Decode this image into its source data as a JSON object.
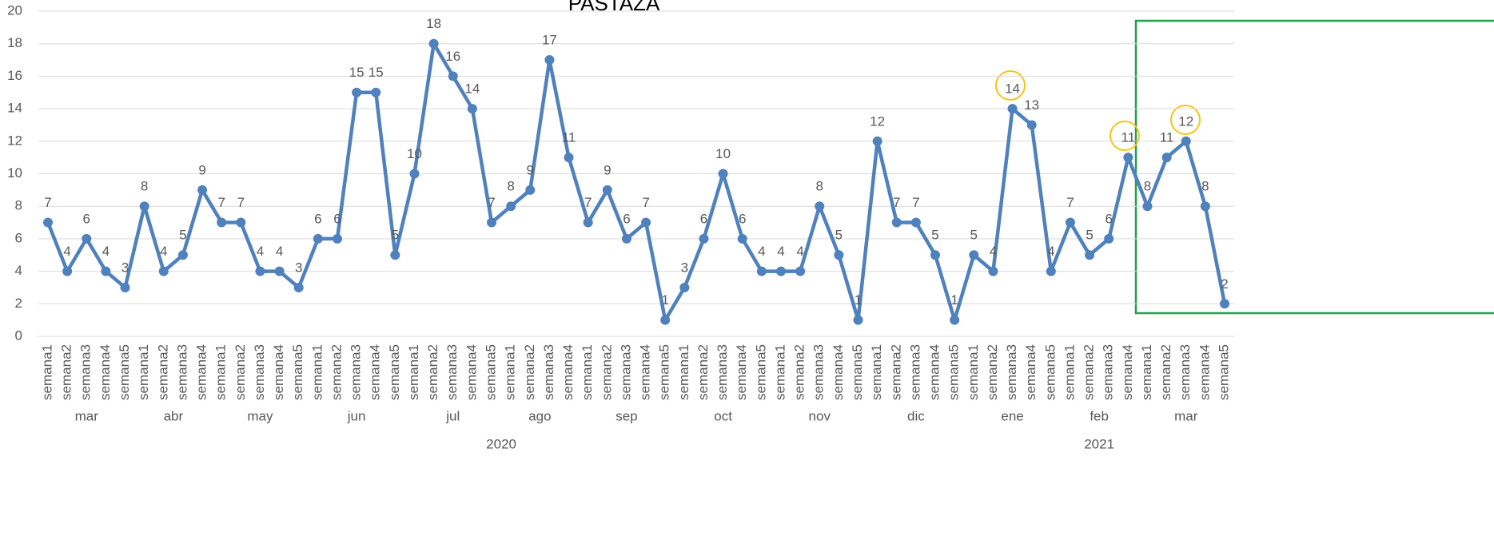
{
  "chart_data": {
    "type": "line",
    "title": "PASTAZA",
    "groups": [
      {
        "year": "2020",
        "months": [
          {
            "month": "mar",
            "weeks": [
              "semana1",
              "semana2",
              "semana3",
              "semana4",
              "semana5"
            ]
          },
          {
            "month": "abr",
            "weeks": [
              "semana1",
              "semana2",
              "semana3",
              "semana4"
            ]
          },
          {
            "month": "may",
            "weeks": [
              "semana1",
              "semana2",
              "semana3",
              "semana4",
              "semana5"
            ]
          },
          {
            "month": "jun",
            "weeks": [
              "semana1",
              "semana2",
              "semana3",
              "semana4",
              "semana5"
            ]
          },
          {
            "month": "jul",
            "weeks": [
              "semana1",
              "semana2",
              "semana3",
              "semana4",
              "semana5"
            ]
          },
          {
            "month": "ago",
            "weeks": [
              "semana1",
              "semana2",
              "semana3",
              "semana4"
            ]
          },
          {
            "month": "sep",
            "weeks": [
              "semana1",
              "semana2",
              "semana3",
              "semana4",
              "semana5"
            ]
          },
          {
            "month": "oct",
            "weeks": [
              "semana1",
              "semana2",
              "semana3",
              "semana4",
              "semana5"
            ]
          },
          {
            "month": "nov",
            "weeks": [
              "semana1",
              "semana2",
              "semana3",
              "semana4",
              "semana5"
            ]
          },
          {
            "month": "dic",
            "weeks": [
              "semana1",
              "semana2",
              "semana3",
              "semana4",
              "semana5"
            ]
          }
        ]
      },
      {
        "year": "2021",
        "months": [
          {
            "month": "ene",
            "weeks": [
              "semana1",
              "semana2",
              "semana3",
              "semana4",
              "semana5"
            ]
          },
          {
            "month": "feb",
            "weeks": [
              "semana1",
              "semana2",
              "semana3",
              "semana4"
            ]
          },
          {
            "month": "mar",
            "weeks": [
              "semana1",
              "semana2",
              "semana3",
              "semana4",
              "semana5"
            ]
          }
        ]
      }
    ],
    "series": [
      {
        "name": "PASTAZA",
        "color": "#4f81bd",
        "values": [
          7,
          4,
          6,
          4,
          3,
          8,
          4,
          5,
          9,
          7,
          7,
          4,
          4,
          3,
          6,
          6,
          15,
          15,
          5,
          10,
          18,
          16,
          14,
          7,
          8,
          9,
          17,
          11,
          7,
          9,
          6,
          7,
          1,
          3,
          6,
          10,
          6,
          4,
          4,
          4,
          8,
          5,
          1,
          12,
          7,
          7,
          5,
          1,
          5,
          4,
          14,
          13,
          4,
          7,
          5,
          6,
          11,
          8,
          11,
          12,
          8,
          2
        ]
      }
    ],
    "ylim": [
      0,
      20
    ],
    "yticks": [
      0,
      2,
      4,
      6,
      8,
      10,
      12,
      14,
      16,
      18,
      20
    ],
    "grid": true
  }
}
